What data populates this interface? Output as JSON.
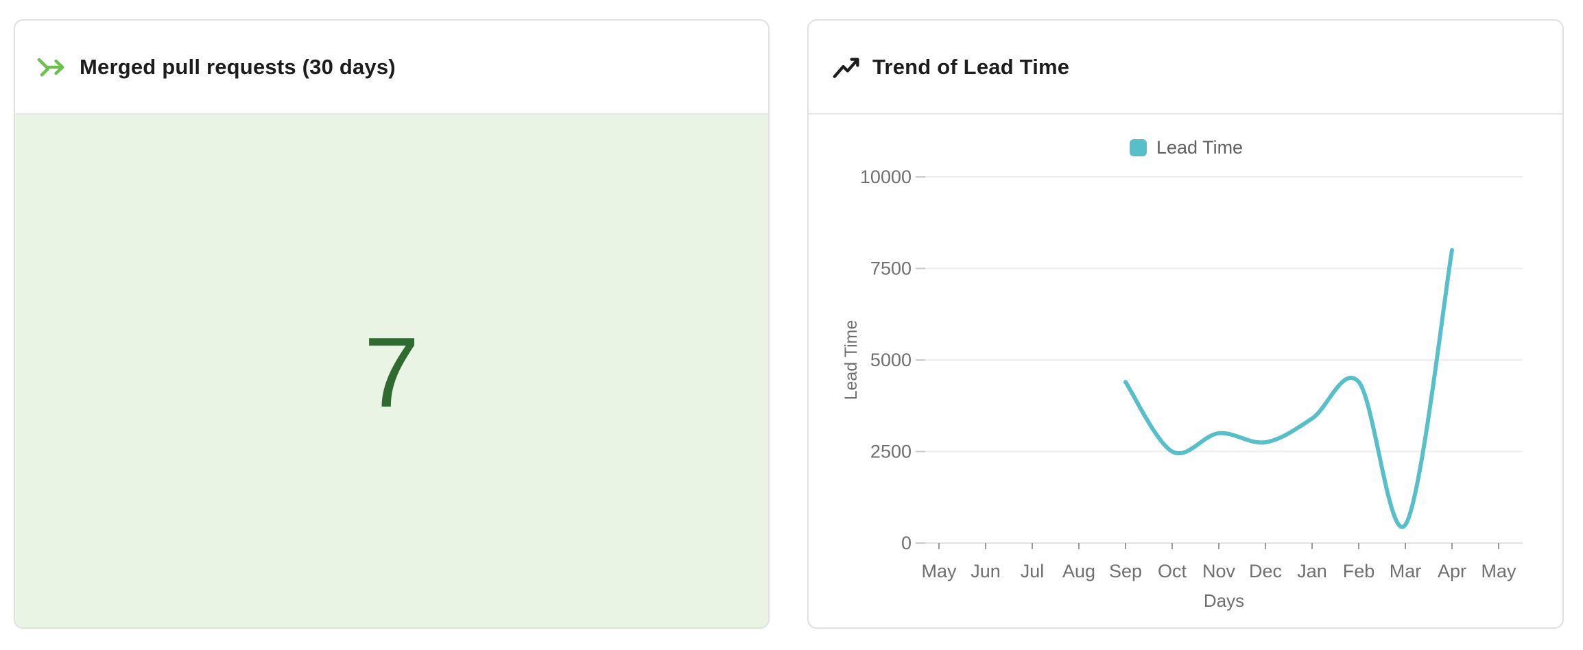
{
  "left_card": {
    "title": "Merged pull requests (30 days)",
    "icon": "merge-arrow-icon",
    "icon_color": "#6cc04e",
    "value": "7",
    "value_color": "#2f6b30",
    "panel_bg": "#e9f4e4"
  },
  "right_card": {
    "title": "Trend of Lead Time",
    "icon": "trending-up-icon",
    "icon_color": "#1c1c1c"
  },
  "chart_data": {
    "type": "line",
    "title": "Trend of Lead Time",
    "xlabel": "Days",
    "ylabel": "Lead Time",
    "x_categories": [
      "May",
      "Jun",
      "Jul",
      "Aug",
      "Sep",
      "Oct",
      "Nov",
      "Dec",
      "Jan",
      "Feb",
      "Mar",
      "Apr",
      "May"
    ],
    "y_ticks": [
      0,
      2500,
      5000,
      7500,
      10000
    ],
    "ylim": [
      0,
      10000
    ],
    "grid": true,
    "legend": {
      "position": "top",
      "entries": [
        {
          "label": "Lead Time",
          "color": "#56bfca"
        }
      ]
    },
    "series": [
      {
        "name": "Lead Time",
        "color": "#56bfca",
        "smooth": true,
        "x_start_category": "Sep",
        "values": [
          4400,
          2500,
          3000,
          2750,
          3400,
          4400,
          500,
          8000
        ]
      }
    ]
  }
}
